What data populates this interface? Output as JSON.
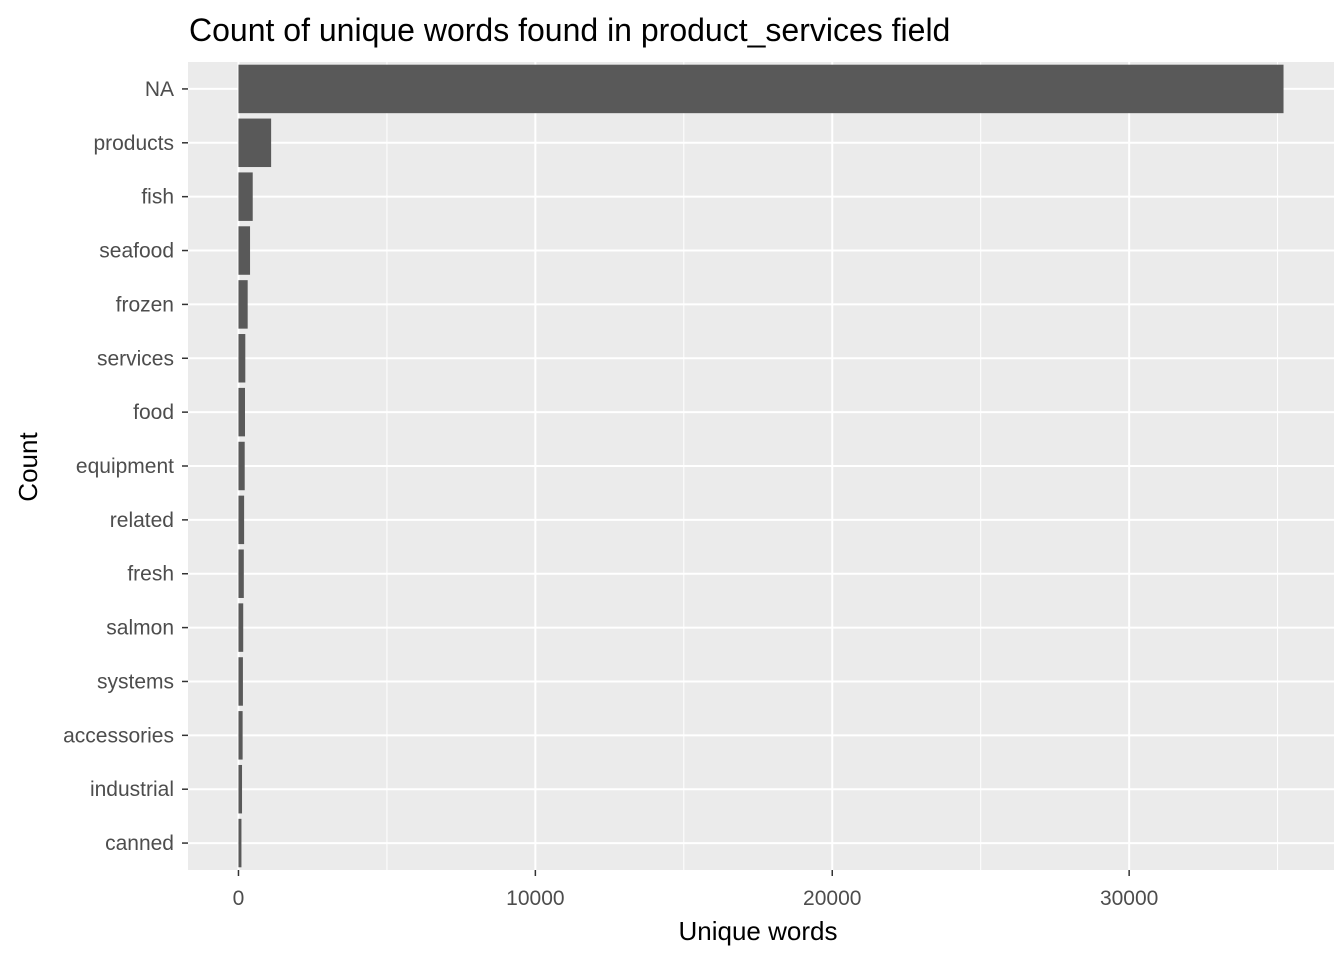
{
  "chart_data": {
    "type": "bar",
    "orientation": "horizontal",
    "title": "Count of unique words found in product_services field",
    "xlabel": "Unique words",
    "ylabel": "Count",
    "categories": [
      "NA",
      "products",
      "fish",
      "seafood",
      "frozen",
      "services",
      "food",
      "equipment",
      "related",
      "fresh",
      "salmon",
      "systems",
      "accessories",
      "industrial",
      "canned"
    ],
    "values": [
      35200,
      1100,
      480,
      390,
      310,
      230,
      220,
      210,
      190,
      180,
      160,
      150,
      140,
      120,
      100
    ],
    "xlim": [
      -1700,
      36900
    ],
    "x_ticks": [
      0,
      10000,
      20000,
      30000
    ],
    "x_tick_labels": [
      "0",
      "10000",
      "20000",
      "30000"
    ],
    "grid": true,
    "colors": {
      "panel_background": "#ebebeb",
      "grid": "#ffffff",
      "bar": "#595959",
      "tick_text": "#4d4d4d",
      "tick_mark": "#333333"
    }
  }
}
